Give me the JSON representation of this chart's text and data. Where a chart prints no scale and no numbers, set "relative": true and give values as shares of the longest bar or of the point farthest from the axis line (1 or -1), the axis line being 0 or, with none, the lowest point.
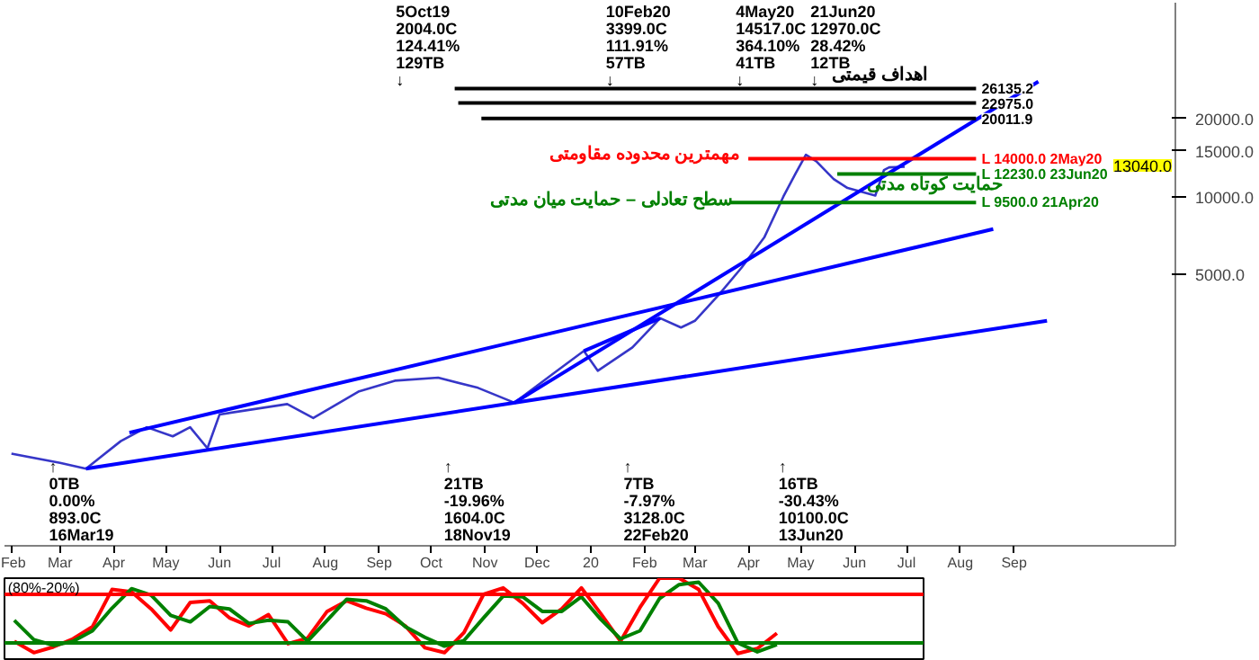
{
  "chart_data": [
    {
      "type": "line",
      "log": true,
      "xlim": [
        "2019-01-28",
        "2020-12-03"
      ],
      "ylim": [
        450,
        56000
      ],
      "xticks": [
        {
          "value": "2019-02-01",
          "label": "Feb"
        },
        {
          "value": "2019-03-01",
          "label": "Mar"
        },
        {
          "value": "2019-04-01",
          "label": "Apr"
        },
        {
          "value": "2019-05-01",
          "label": "May"
        },
        {
          "value": "2019-06-01",
          "label": "Jun"
        },
        {
          "value": "2019-07-01",
          "label": "Jul"
        },
        {
          "value": "2019-08-01",
          "label": "Aug"
        },
        {
          "value": "2019-09-01",
          "label": "Sep"
        },
        {
          "value": "2019-10-01",
          "label": "Oct"
        },
        {
          "value": "2019-11-01",
          "label": "Nov"
        },
        {
          "value": "2019-12-01",
          "label": "Dec"
        },
        {
          "value": "2020-01-01",
          "label": "20"
        },
        {
          "value": "2020-02-01",
          "label": "Feb"
        },
        {
          "value": "2020-03-01",
          "label": "Mar"
        },
        {
          "value": "2020-04-01",
          "label": "Apr"
        },
        {
          "value": "2020-05-01",
          "label": "May"
        },
        {
          "value": "2020-06-01",
          "label": "Jun"
        },
        {
          "value": "2020-07-01",
          "label": "Jul"
        },
        {
          "value": "2020-08-01",
          "label": "Aug"
        },
        {
          "value": "2020-09-01",
          "label": "Sep"
        }
      ],
      "yticks": [
        {
          "value": 5000,
          "label": "5000.0"
        },
        {
          "value": 10000,
          "label": "10000.0"
        },
        {
          "value": 15000,
          "label": "15000.0"
        },
        {
          "value": 20000,
          "label": "20000.0"
        }
      ],
      "series": [
        {
          "type": "line",
          "color": "#3636c8",
          "x": [
            "2019-02-01",
            "2019-03-01",
            "2019-03-16",
            "2019-04-05",
            "2019-04-20",
            "2019-05-05",
            "2019-05-15",
            "2019-05-25",
            "2019-06-01",
            "2019-07-10",
            "2019-07-25",
            "2019-08-20",
            "2019-09-10",
            "2019-10-05",
            "2019-10-28",
            "2019-11-18",
            "2019-12-10",
            "2019-12-28",
            "2020-01-05",
            "2020-01-25",
            "2020-02-10",
            "2020-02-22",
            "2020-03-01",
            "2020-03-15",
            "2020-03-28",
            "2020-04-10",
            "2020-04-21",
            "2020-04-28",
            "2020-05-04",
            "2020-05-10",
            "2020-05-20",
            "2020-05-28",
            "2020-06-13",
            "2020-06-18",
            "2020-06-21",
            "2020-06-30"
          ],
          "values": [
            1020,
            940,
            893,
            1140,
            1290,
            1190,
            1290,
            1070,
            1445,
            1585,
            1400,
            1770,
            1950,
            2004,
            1830,
            1604,
            2070,
            2540,
            2130,
            2620,
            3399,
            3128,
            3320,
            4200,
            5330,
            6960,
            10000,
            12270,
            14517,
            13700,
            11700,
            10800,
            10100,
            12660,
            12970,
            13040
          ]
        },
        {
          "type": "line",
          "color": "#0000ff",
          "x": [
            "2019-03-16",
            "2020-09-20"
          ],
          "values": [
            893,
            3320
          ]
        },
        {
          "type": "line",
          "color": "#0000ff",
          "x": [
            "2019-04-10",
            "2020-08-20"
          ],
          "values": [
            1230,
            7500
          ]
        },
        {
          "type": "line",
          "color": "#0000ff",
          "x": [
            "2019-11-18",
            "2020-09-15"
          ],
          "values": [
            1604,
            27800
          ]
        },
        {
          "type": "line",
          "color": "#0000ff",
          "x": [
            "2019-12-28",
            "2020-02-10"
          ],
          "values": [
            2540,
            3399
          ]
        }
      ],
      "ref_lines": [
        {
          "axis": "y",
          "value": 26135.2,
          "label": "26135.2",
          "color": "#000000"
        },
        {
          "axis": "y",
          "value": 22975,
          "label": "22975.0",
          "color": "#000000"
        },
        {
          "axis": "y",
          "value": 20011.9,
          "label": "20011.9",
          "color": "#000000"
        },
        {
          "axis": "y",
          "value": 14000,
          "label": "L 14000.0 2May20",
          "color": "#ff0000"
        },
        {
          "axis": "y",
          "value": 12230,
          "label": "L 12230.0 23Jun20",
          "color": "#008000"
        },
        {
          "axis": "y",
          "value": 9500,
          "label": "L 9500.0 21Apr20",
          "color": "#008000"
        }
      ],
      "annotations": [
        "5Oct19\n2004.0C\n124.41%\n129TB\n↓",
        "10Feb20\n3399.0C\n111.91%\n57TB\n↓",
        "4May20\n14517.0C\n364.10%\n41TB\n↓",
        "21Jun20\n12970.0C\n28.42%\n12TB\n↓",
        "↑\n0TB\n0.00%\n893.0C\n16Mar19",
        "↑\n21TB\n-19.96%\n1604.0C\n18Nov19",
        "↑\n7TB\n-7.97%\n3128.0C\n22Feb20",
        "↑\n16TB\n-30.43%\n10100.0C\n13Jun20",
        "13040.0",
        "اهداف قیمتی",
        "مهمترین محدوده مقاومتی",
        "حمایت کوتاه مدتی",
        "سطح تعادلی – حمایت میان مدتی"
      ]
    },
    {
      "type": "line",
      "relative": true,
      "categories": [
        null,
        null,
        null,
        null,
        null,
        null,
        null,
        null,
        null,
        null,
        null,
        null,
        null,
        null,
        null,
        null,
        null,
        null,
        null,
        null,
        null,
        null,
        null,
        null,
        null,
        null,
        null,
        null,
        null,
        null,
        null,
        null,
        null,
        null,
        null,
        null,
        null,
        null,
        null,
        null,
        null,
        null,
        null,
        null,
        null,
        null,
        null
      ],
      "series": [
        {
          "color": "#ff0000",
          "values": [
            0.22,
            0.08,
            0.15,
            0.25,
            0.4,
            0.86,
            0.83,
            0.62,
            0.36,
            0.7,
            0.72,
            0.51,
            0.41,
            0.55,
            0.19,
            0.26,
            0.59,
            0.72,
            0.63,
            0.56,
            0.41,
            0.14,
            0.08,
            0.33,
            0.8,
            0.88,
            0.69,
            0.45,
            0.62,
            0.88,
            0.56,
            0.22,
            0.64,
            1.0,
            1.0,
            0.86,
            0.4,
            0.07,
            0.13,
            0.32,
            null,
            null,
            null,
            null,
            null,
            null,
            null
          ]
        },
        {
          "color": "#008000",
          "values": [
            0.48,
            0.24,
            0.17,
            0.22,
            0.35,
            0.63,
            0.87,
            0.79,
            0.54,
            0.46,
            0.65,
            0.62,
            0.44,
            0.48,
            0.46,
            0.22,
            0.48,
            0.74,
            0.72,
            0.62,
            0.4,
            0.27,
            0.16,
            0.23,
            0.51,
            0.78,
            0.77,
            0.59,
            0.59,
            0.77,
            0.49,
            0.25,
            0.35,
            0.75,
            0.92,
            0.95,
            0.69,
            0.2,
            0.09,
            0.18,
            null,
            null,
            null,
            null,
            null,
            null,
            null
          ]
        }
      ],
      "ref_lines": [
        {
          "axis": "y",
          "value": 0.8,
          "label": null,
          "color": "#ff0000"
        },
        {
          "axis": "y",
          "value": 0.2,
          "label": null,
          "color": "#008000"
        }
      ],
      "annotations": [
        "(80%-20%)"
      ]
    }
  ]
}
